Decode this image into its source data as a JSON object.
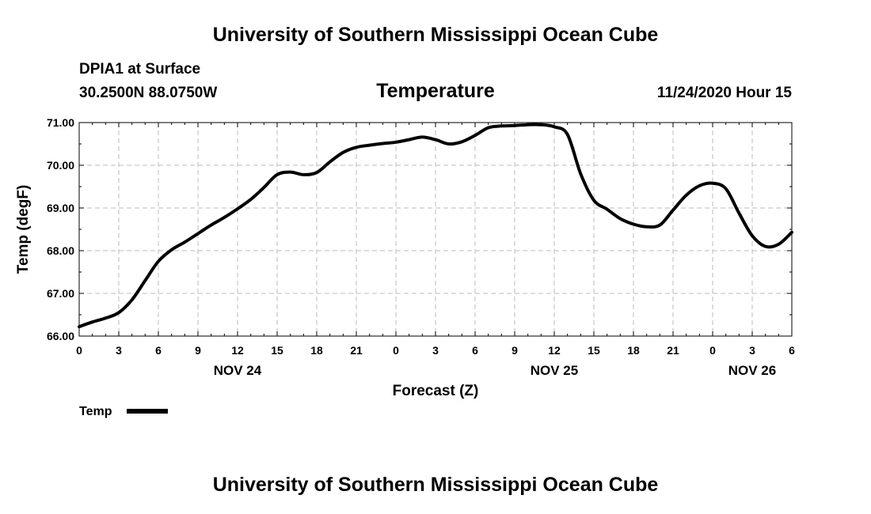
{
  "header": {
    "title": "University of Southern Mississippi Ocean Cube",
    "station": "DPIA1 at Surface",
    "coords": "30.2500N 88.0750W",
    "variable": "Temperature",
    "datetime": "11/24/2020 Hour 15"
  },
  "footer": {
    "title": "University of Southern Mississippi Ocean Cube"
  },
  "chart_data": {
    "type": "line",
    "title": "Temperature",
    "xlabel": "Forecast (Z)",
    "ylabel": "Temp (degF)",
    "ylim": [
      66.0,
      71.0
    ],
    "yticks": [
      "66.00",
      "67.00",
      "68.00",
      "69.00",
      "70.00",
      "71.00"
    ],
    "xlim_hours": [
      0,
      54
    ],
    "xtick_labels": [
      "0",
      "3",
      "6",
      "9",
      "12",
      "15",
      "18",
      "21",
      "0",
      "3",
      "6",
      "9",
      "12",
      "15",
      "18",
      "21",
      "0",
      "3",
      "6"
    ],
    "day_labels": [
      {
        "label": "NOV 24",
        "hour": 12
      },
      {
        "label": "NOV 25",
        "hour": 36
      },
      {
        "label": "NOV 26",
        "hour": 51
      }
    ],
    "grid": true,
    "legend": {
      "position": "bottom-left",
      "label": "Temp"
    },
    "series": [
      {
        "name": "Temp",
        "x": [
          0,
          1,
          2,
          3,
          4,
          5,
          6,
          7,
          8,
          9,
          10,
          11,
          12,
          13,
          14,
          15,
          16,
          17,
          18,
          19,
          20,
          21,
          22,
          23,
          24,
          25,
          26,
          27,
          28,
          29,
          30,
          31,
          32,
          33,
          34,
          35,
          36,
          37,
          38,
          39,
          40,
          41,
          42,
          43,
          44,
          45,
          46,
          47,
          48,
          49,
          50,
          51,
          52,
          53,
          54
        ],
        "values": [
          66.22,
          66.33,
          66.42,
          66.55,
          66.85,
          67.3,
          67.75,
          68.02,
          68.2,
          68.4,
          68.6,
          68.78,
          68.98,
          69.2,
          69.48,
          69.78,
          69.84,
          69.78,
          69.83,
          70.08,
          70.3,
          70.42,
          70.47,
          70.51,
          70.54,
          70.6,
          70.66,
          70.6,
          70.5,
          70.55,
          70.7,
          70.88,
          70.92,
          70.93,
          70.95,
          70.95,
          70.9,
          70.72,
          69.8,
          69.18,
          68.97,
          68.75,
          68.62,
          68.56,
          68.6,
          68.95,
          69.3,
          69.52,
          69.58,
          69.45,
          68.88,
          68.35,
          68.1,
          68.15,
          68.43
        ]
      }
    ]
  }
}
